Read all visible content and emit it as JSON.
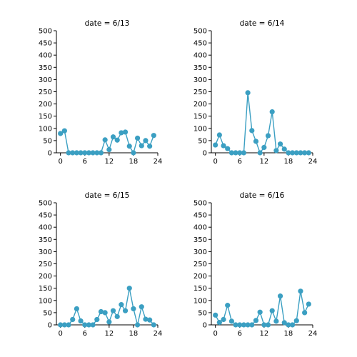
{
  "chart_data": [
    {
      "type": "line",
      "title": "date = 6/13",
      "x": [
        0,
        1,
        2,
        3,
        4,
        5,
        6,
        7,
        8,
        9,
        10,
        11,
        12,
        13,
        14,
        15,
        16,
        17,
        18,
        19,
        20,
        21,
        22,
        23
      ],
      "series": [
        {
          "values": [
            79,
            90,
            0,
            0,
            0,
            0,
            0,
            0,
            0,
            0,
            0,
            53,
            13,
            65,
            52,
            82,
            85,
            27,
            0,
            60,
            29,
            50,
            27,
            71
          ]
        }
      ],
      "xticks": [
        0,
        6,
        12,
        18,
        24
      ],
      "yticks": [
        0,
        50,
        100,
        150,
        200,
        250,
        300,
        350,
        400,
        450,
        500
      ],
      "xlim": [
        -1,
        24
      ],
      "ylim": [
        0,
        500
      ],
      "xlabel": "",
      "ylabel": ""
    },
    {
      "type": "line",
      "title": "date = 6/14",
      "x": [
        0,
        1,
        2,
        3,
        4,
        5,
        6,
        7,
        8,
        9,
        10,
        11,
        12,
        13,
        14,
        15,
        16,
        17,
        18,
        19,
        20,
        21,
        22,
        23
      ],
      "series": [
        {
          "values": [
            32,
            73,
            29,
            17,
            0,
            0,
            0,
            0,
            246,
            91,
            47,
            0,
            22,
            70,
            168,
            9,
            36,
            15,
            0,
            0,
            0,
            0,
            0,
            0
          ]
        }
      ],
      "xticks": [
        0,
        6,
        12,
        18,
        24
      ],
      "yticks": [
        0,
        50,
        100,
        150,
        200,
        250,
        300,
        350,
        400,
        450,
        500
      ],
      "xlim": [
        -1,
        24
      ],
      "ylim": [
        0,
        500
      ],
      "xlabel": "",
      "ylabel": ""
    },
    {
      "type": "line",
      "title": "date = 6/15",
      "x": [
        0,
        1,
        2,
        3,
        4,
        5,
        6,
        7,
        8,
        9,
        10,
        11,
        12,
        13,
        14,
        15,
        16,
        17,
        18,
        19,
        20,
        21,
        22,
        23
      ],
      "series": [
        {
          "values": [
            0,
            0,
            0,
            22,
            66,
            16,
            0,
            0,
            0,
            22,
            54,
            50,
            12,
            58,
            34,
            83,
            58,
            150,
            66,
            0,
            74,
            23,
            20,
            0
          ]
        }
      ],
      "xticks": [
        0,
        6,
        12,
        18,
        24
      ],
      "yticks": [
        0,
        50,
        100,
        150,
        200,
        250,
        300,
        350,
        400,
        450,
        500
      ],
      "xlim": [
        -1,
        24
      ],
      "ylim": [
        0,
        500
      ],
      "xlabel": "",
      "ylabel": ""
    },
    {
      "type": "line",
      "title": "date = 6/16",
      "x": [
        0,
        1,
        2,
        3,
        4,
        5,
        6,
        7,
        8,
        9,
        10,
        11,
        12,
        13,
        14,
        15,
        16,
        17,
        18,
        19,
        20,
        21,
        22,
        23
      ],
      "series": [
        {
          "values": [
            40,
            10,
            22,
            80,
            15,
            0,
            0,
            0,
            0,
            0,
            18,
            52,
            0,
            0,
            58,
            15,
            118,
            9,
            0,
            0,
            17,
            138,
            50,
            85
          ]
        }
      ],
      "xticks": [
        0,
        6,
        12,
        18,
        24
      ],
      "yticks": [
        0,
        50,
        100,
        150,
        200,
        250,
        300,
        350,
        400,
        450,
        500
      ],
      "xlim": [
        -1,
        24
      ],
      "ylim": [
        0,
        500
      ],
      "xlabel": "",
      "ylabel": ""
    }
  ],
  "colors": {
    "series": "#3b9fc2",
    "axis": "#000000",
    "background": "#ffffff"
  }
}
